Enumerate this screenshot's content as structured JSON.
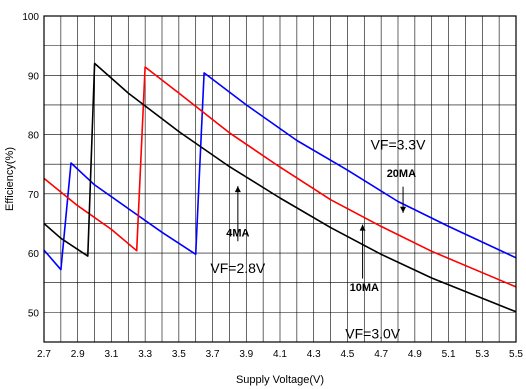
{
  "chart_data": {
    "type": "line",
    "title": "",
    "xlabel": "Supply Voltage(V)",
    "ylabel": "Efficiency(%)",
    "xlim": [
      2.7,
      5.5
    ],
    "ylim": [
      45,
      100
    ],
    "x_ticks": [
      "2.7",
      "2.9",
      "3.1",
      "3.3",
      "3.5",
      "3.7",
      "3.9",
      "4.1",
      "4.3",
      "4.5",
      "4.7",
      "4.9",
      "5.1",
      "5.3",
      "5.5"
    ],
    "y_ticks": [
      "50",
      "60",
      "70",
      "80",
      "90",
      "100"
    ],
    "grid": true,
    "series": [
      {
        "color": "#0000ff",
        "points": [
          [
            2.7,
            60.5
          ],
          [
            2.8,
            57.2
          ],
          [
            2.86,
            75.2
          ],
          [
            3.0,
            71.5
          ],
          [
            3.2,
            67.5
          ],
          [
            3.4,
            63.5
          ],
          [
            3.6,
            59.8
          ],
          [
            3.65,
            90.4
          ],
          [
            3.9,
            85.0
          ],
          [
            4.2,
            79.0
          ],
          [
            4.5,
            74.0
          ],
          [
            4.8,
            68.7
          ],
          [
            5.1,
            64.5
          ],
          [
            5.5,
            59.2
          ]
        ]
      },
      {
        "color": "#ff0000",
        "points": [
          [
            2.7,
            72.6
          ],
          [
            2.9,
            68.0
          ],
          [
            3.1,
            64.0
          ],
          [
            3.25,
            60.4
          ],
          [
            3.3,
            91.4
          ],
          [
            3.5,
            87.0
          ],
          [
            3.8,
            80.3
          ],
          [
            4.1,
            74.5
          ],
          [
            4.4,
            69.0
          ],
          [
            4.7,
            64.5
          ],
          [
            5.0,
            60.3
          ],
          [
            5.5,
            54.3
          ]
        ]
      },
      {
        "color": "#000000",
        "points": [
          [
            2.7,
            65.0
          ],
          [
            2.8,
            62.5
          ],
          [
            2.96,
            59.5
          ],
          [
            3.0,
            92.0
          ],
          [
            3.2,
            87.0
          ],
          [
            3.5,
            80.5
          ],
          [
            3.8,
            74.6
          ],
          [
            4.1,
            69.3
          ],
          [
            4.4,
            64.3
          ],
          [
            4.7,
            59.8
          ],
          [
            5.0,
            55.8
          ],
          [
            5.5,
            50.1
          ]
        ]
      }
    ],
    "annotations": [
      {
        "text": "VF=3.3V",
        "x": 4.8,
        "y": 77.5,
        "size": "big"
      },
      {
        "text": "20MA",
        "x": 4.82,
        "y": 72.8,
        "size": "small"
      },
      {
        "text": "4MA",
        "x": 3.85,
        "y": 62.8,
        "size": "small"
      },
      {
        "text": "VF=2.8V",
        "x": 3.85,
        "y": 56.6,
        "size": "big"
      },
      {
        "text": "10MA",
        "x": 4.6,
        "y": 53.6,
        "size": "small"
      },
      {
        "text": "VF=3.0V",
        "x": 4.65,
        "y": 45.6,
        "size": "big"
      }
    ],
    "arrows": [
      {
        "from": [
          4.83,
          71.2
        ],
        "to": [
          4.83,
          66.8
        ]
      },
      {
        "from": [
          3.85,
          62.0
        ],
        "to": [
          3.85,
          71.3
        ]
      },
      {
        "from": [
          4.59,
          55.7
        ],
        "to": [
          4.59,
          64.8
        ]
      }
    ]
  }
}
